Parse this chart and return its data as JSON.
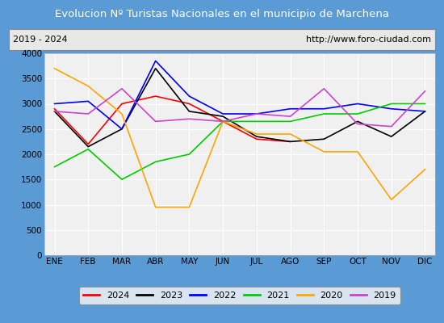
{
  "title": "Evolucion Nº Turistas Nacionales en el municipio de Marchena",
  "subtitle_left": "2019 - 2024",
  "subtitle_right": "http://www.foro-ciudad.com",
  "months": [
    "ENE",
    "FEB",
    "MAR",
    "ABR",
    "MAY",
    "JUN",
    "JUL",
    "AGO",
    "SEP",
    "OCT",
    "NOV",
    "DIC"
  ],
  "series": {
    "2024": [
      2900,
      2200,
      3000,
      3150,
      3000,
      2650,
      2300,
      2250,
      null,
      null,
      null,
      null
    ],
    "2023": [
      2850,
      2150,
      2500,
      3700,
      2850,
      2750,
      2350,
      2250,
      2300,
      2650,
      2350,
      2850
    ],
    "2022": [
      3000,
      3050,
      2500,
      3850,
      3150,
      2800,
      2800,
      2900,
      2900,
      3000,
      2900,
      2850
    ],
    "2021": [
      1750,
      2100,
      1500,
      1850,
      2000,
      2650,
      2650,
      2650,
      2800,
      2800,
      3000,
      3000
    ],
    "2020": [
      3700,
      3350,
      2800,
      950,
      950,
      2650,
      2400,
      2400,
      2050,
      2050,
      1100,
      1700
    ],
    "2019": [
      2850,
      2800,
      3300,
      2650,
      2700,
      2650,
      2800,
      2750,
      3300,
      2600,
      2550,
      3250
    ]
  },
  "colors": {
    "2024": "#ff0000",
    "2023": "#000000",
    "2022": "#0000ff",
    "2021": "#00cc00",
    "2020": "#ffa500",
    "2019": "#cc44cc"
  },
  "ylim": [
    0,
    4000
  ],
  "yticks": [
    0,
    500,
    1000,
    1500,
    2000,
    2500,
    3000,
    3500,
    4000
  ],
  "title_bg_color": "#5b9bd5",
  "title_text_color": "#ffffff",
  "plot_bg_color": "#f0f0f0",
  "grid_color": "#ffffff",
  "outer_bg": "#5b9bd5",
  "inner_bg": "#e8e8e8"
}
